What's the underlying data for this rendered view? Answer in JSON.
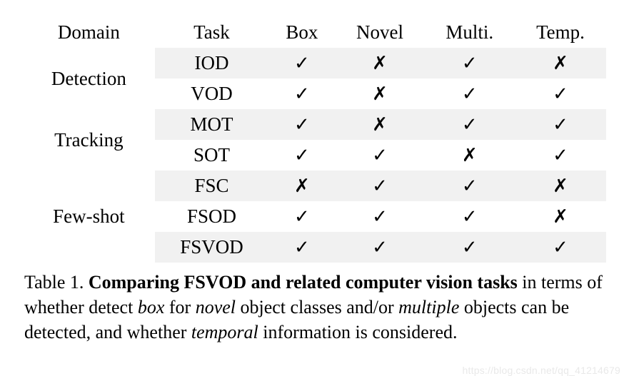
{
  "table": {
    "type": "table",
    "background_color": "#ffffff",
    "zebra_color": "#f1f1f1",
    "rule_color": "#000000",
    "header_fontsize": 27,
    "cell_fontsize": 27,
    "check_glyph": "✓",
    "cross_glyph": "✗",
    "check_color": "#000000",
    "cross_color": "#000000",
    "columns": [
      "Domain",
      "Task",
      "Box",
      "Novel",
      "Multi.",
      "Temp."
    ],
    "col_align": [
      "left",
      "center",
      "center",
      "center",
      "center",
      "center"
    ],
    "groups": [
      {
        "domain": "Detection",
        "rows": [
          {
            "task": "IOD",
            "box": true,
            "novel": false,
            "multi": true,
            "temp": false,
            "bold": false
          },
          {
            "task": "VOD",
            "box": true,
            "novel": false,
            "multi": true,
            "temp": true,
            "bold": false
          }
        ]
      },
      {
        "domain": "Tracking",
        "rows": [
          {
            "task": "MOT",
            "box": true,
            "novel": false,
            "multi": true,
            "temp": true,
            "bold": false
          },
          {
            "task": "SOT",
            "box": true,
            "novel": true,
            "multi": false,
            "temp": true,
            "bold": false
          }
        ]
      },
      {
        "domain": "Few-shot",
        "rows": [
          {
            "task": "FSC",
            "box": false,
            "novel": true,
            "multi": true,
            "temp": false,
            "bold": false
          },
          {
            "task": "FSOD",
            "box": true,
            "novel": true,
            "multi": true,
            "temp": false,
            "bold": false
          },
          {
            "task": "FSVOD",
            "box": true,
            "novel": true,
            "multi": true,
            "temp": true,
            "bold": true
          }
        ]
      }
    ]
  },
  "caption": {
    "fontsize": 26,
    "lead": "Table 1.",
    "bold_part": "Comparing FSVOD and related computer vision tasks",
    "rest_1": " in terms of whether detect ",
    "it_box": "box",
    "rest_2": " for ",
    "it_novel": "novel",
    "rest_3": " object classes and/or ",
    "it_multiple": "mul­tiple",
    "rest_4": " objects can be detected, and whether ",
    "it_temporal": "temporal",
    "rest_5": " information is considered."
  },
  "watermark": {
    "text": "https://blog.csdn.net/qq_41214679",
    "color": "#e9e9e9",
    "fontsize": 14
  }
}
